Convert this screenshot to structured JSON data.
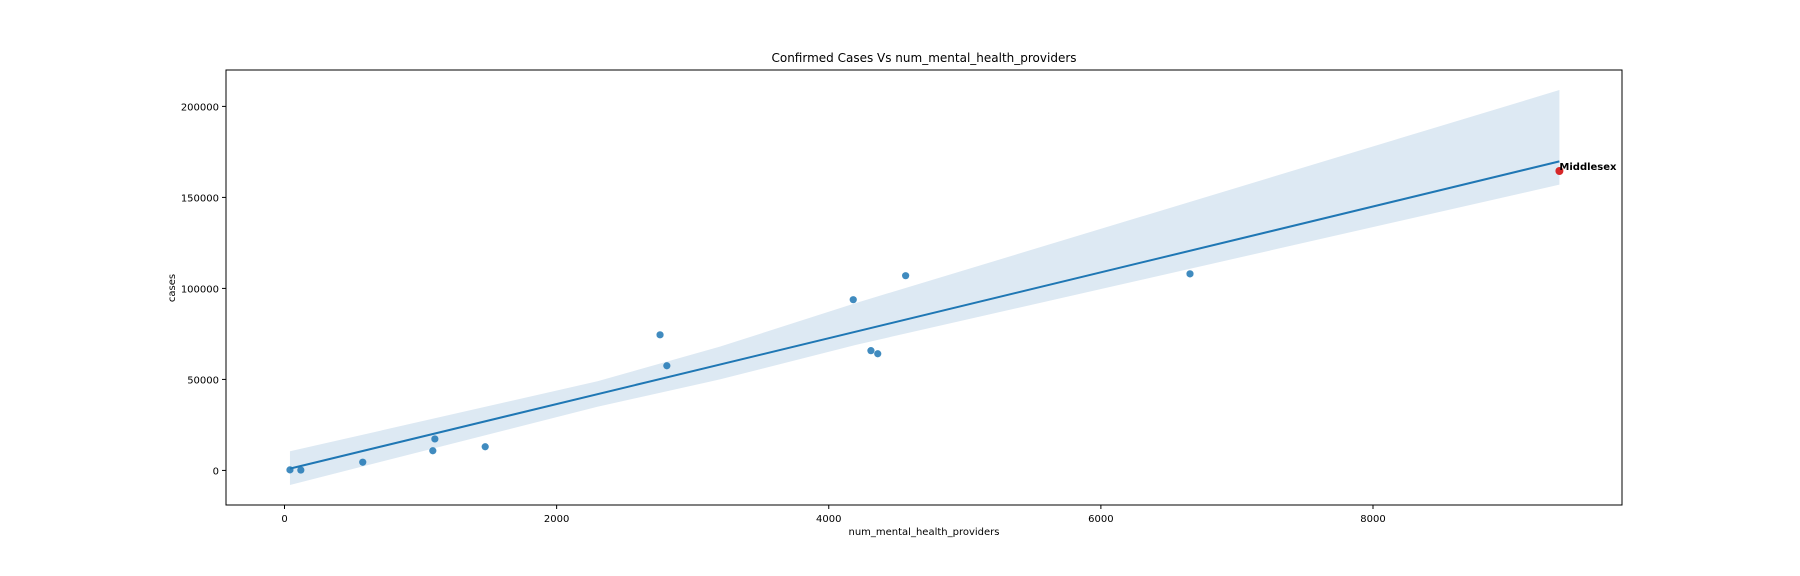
{
  "chart_data": {
    "type": "scatter",
    "title": "Confirmed Cases Vs num_mental_health_providers",
    "xlabel": "num_mental_health_providers",
    "ylabel": "cases",
    "xlim": [
      -430,
      9830
    ],
    "ylim": [
      -19000,
      220000
    ],
    "xticks": [
      0,
      2000,
      4000,
      6000,
      8000
    ],
    "xtick_labels": [
      "0",
      "2000",
      "4000",
      "6000",
      "8000"
    ],
    "yticks": [
      0,
      50000,
      100000,
      150000,
      200000
    ],
    "ytick_labels": [
      "0",
      "50000",
      "100000",
      "150000",
      "200000"
    ],
    "grid": false,
    "colors": {
      "points": "#1f77b4",
      "line": "#1f77b4",
      "band": "#dde9f3",
      "highlight": "#d62728"
    },
    "series": [
      {
        "points": [
          {
            "x": 40,
            "y": 300
          },
          {
            "x": 120,
            "y": 200
          },
          {
            "x": 575,
            "y": 4500
          },
          {
            "x": 1090,
            "y": 10800
          },
          {
            "x": 1105,
            "y": 17300
          },
          {
            "x": 1475,
            "y": 13000
          },
          {
            "x": 2760,
            "y": 74500
          },
          {
            "x": 2810,
            "y": 57500
          },
          {
            "x": 4180,
            "y": 93800
          },
          {
            "x": 4310,
            "y": 65800
          },
          {
            "x": 4360,
            "y": 64100
          },
          {
            "x": 4565,
            "y": 107000
          },
          {
            "x": 6655,
            "y": 108000
          }
        ]
      }
    ],
    "highlight": {
      "x": 9370,
      "y": 164500,
      "label": "Middlesex"
    },
    "regression": {
      "x": [
        40,
        9370
      ],
      "y": [
        1000,
        169800
      ]
    },
    "confidence_band": {
      "x": [
        40,
        2300,
        3200,
        4200,
        9370
      ],
      "upper": [
        10500,
        49000,
        68000,
        92000,
        209000
      ],
      "lower": [
        -8000,
        35000,
        50000,
        69000,
        157000
      ]
    }
  }
}
